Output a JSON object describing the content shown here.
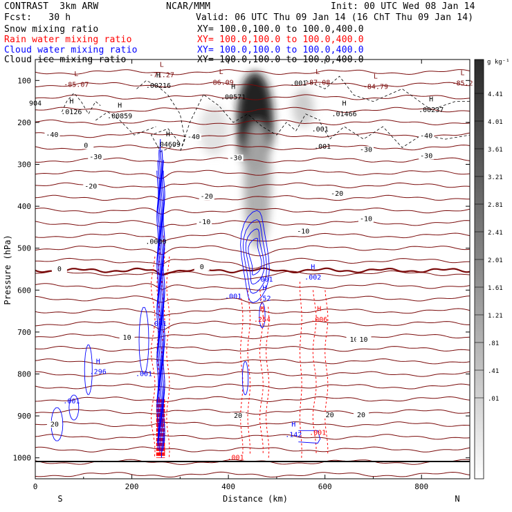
{
  "header": {
    "model": "CONTRAST  3km ARW",
    "fcst": "Fcst:   30 h",
    "center": "NCAR/MMM",
    "init": "Init: 00 UTC Wed 08 Jan 14",
    "valid": "Valid: 06 UTC Thu 09 Jan 14 (16 ChT Thu 09 Jan 14)",
    "fields": [
      {
        "name": "Snow mixing ratio",
        "xy": "XY= 100.0,100.0 to 100.0,400.0",
        "color": "#000000"
      },
      {
        "name": "Rain water mixing ratio",
        "xy": "XY= 100.0,100.0 to 100.0,400.0",
        "color": "#ff0000"
      },
      {
        "name": "Cloud water mixing ratio",
        "xy": "XY= 100.0,100.0 to 100.0,400.0",
        "color": "#0000ff"
      },
      {
        "name": "Cloud ice mixing ratio",
        "xy": "XY= 100.0,100.0 to 100.0,400.0",
        "color": "#000000"
      }
    ]
  },
  "colorbar": {
    "unit": "g kg⁻¹",
    "labels": [
      "4.41",
      "4.01",
      "3.61",
      "3.21",
      "2.81",
      "2.41",
      "2.01",
      "1.61",
      "1.21",
      ".81",
      ".41",
      ".01"
    ]
  },
  "chart_data": {
    "type": "contour-cross-section",
    "xlabel": "Distance (km)",
    "ylabel": "Pressure (hPa)",
    "xlim": [
      0,
      900
    ],
    "ylim": [
      1050,
      50
    ],
    "x_ticks": [
      "0",
      "200",
      "400",
      "600",
      "800"
    ],
    "y_ticks": [
      "100",
      "200",
      "300",
      "400",
      "500",
      "600",
      "700",
      "800",
      "900",
      "1000"
    ],
    "end_labels": {
      "left": "S",
      "right": "N"
    },
    "isotherm_labels": [
      {
        "text": "-40",
        "x": 35,
        "p": 235
      },
      {
        "text": "0",
        "x": 105,
        "p": 260
      },
      {
        "text": "-30",
        "x": 125,
        "p": 288
      },
      {
        "text": "-20",
        "x": 115,
        "p": 358
      },
      {
        "text": "-30",
        "x": 415,
        "p": 290
      },
      {
        "text": "-40",
        "x": 328,
        "p": 240
      },
      {
        "text": "-20",
        "x": 355,
        "p": 382
      },
      {
        "text": "-10",
        "x": 350,
        "p": 443
      },
      {
        "text": "-10",
        "x": 555,
        "p": 465
      },
      {
        "text": "-40",
        "x": 810,
        "p": 237
      },
      {
        "text": "-30",
        "x": 685,
        "p": 270
      },
      {
        "text": "-30",
        "x": 810,
        "p": 285
      },
      {
        "text": "-20",
        "x": 625,
        "p": 375
      },
      {
        "text": "-10",
        "x": 685,
        "p": 435
      },
      {
        "text": "0",
        "x": 50,
        "p": 555
      },
      {
        "text": "0",
        "x": 345,
        "p": 550
      },
      {
        "text": "10",
        "x": 190,
        "p": 718
      },
      {
        "text": "10",
        "x": 660,
        "p": 723
      },
      {
        "text": "10",
        "x": 680,
        "p": 723
      },
      {
        "text": "20",
        "x": 40,
        "p": 925
      },
      {
        "text": "20",
        "x": 420,
        "p": 905
      },
      {
        "text": "20",
        "x": 610,
        "p": 903
      },
      {
        "text": "20",
        "x": 675,
        "p": 903
      }
    ],
    "extrema_labels": [
      {
        "kind": "L",
        "value": "-71.27",
        "x": 262,
        "p": 92,
        "color": "#7a0a0a"
      },
      {
        "kind": "L",
        "value": "-85.07",
        "x": 85,
        "p": 115,
        "color": "#7a0a0a"
      },
      {
        "kind": "L",
        "value": "-86.09",
        "x": 385,
        "p": 110,
        "color": "#7a0a0a"
      },
      {
        "kind": "L",
        "value": "-87.08",
        "x": 585,
        "p": 110,
        "color": "#7a0a0a"
      },
      {
        "kind": "L",
        "value": "-84.79",
        "x": 705,
        "p": 120,
        "color": "#7a0a0a"
      },
      {
        "kind": "L",
        "value": "-85.2",
        "x": 885,
        "p": 112,
        "color": "#7a0a0a"
      },
      {
        "kind": "H",
        "value": ".00216",
        "x": 255,
        "p": 118,
        "color": "#000000"
      },
      {
        "kind": "H",
        "value": ".00571",
        "x": 410,
        "p": 145,
        "color": "#000000"
      },
      {
        "kind": "H",
        "value": ".0126",
        "x": 75,
        "p": 180,
        "color": "#000000"
      },
      {
        "kind": "H",
        "value": ".00859",
        "x": 175,
        "p": 190,
        "color": "#000000"
      },
      {
        "kind": "H",
        "value": ".01466",
        "x": 640,
        "p": 185,
        "color": "#000000"
      },
      {
        "kind": "H",
        "value": ".00237",
        "x": 820,
        "p": 175,
        "color": "#000000"
      },
      {
        "kind": "H",
        "value": ".04609",
        "x": 275,
        "p": 258,
        "color": "#000000"
      },
      {
        "kind": "H",
        "value": ".296",
        "x": 130,
        "p": 800,
        "color": "#0000ff"
      },
      {
        "kind": "H",
        "value": ".142",
        "x": 535,
        "p": 950,
        "color": "#0000ff"
      },
      {
        "kind": "H",
        "value": ".52",
        "x": 475,
        "p": 625,
        "color": "#0000ff"
      },
      {
        "kind": "H",
        "value": ".002",
        "x": 575,
        "p": 575,
        "color": "#0000ff"
      },
      {
        "kind": "H",
        "value": ".006",
        "x": 588,
        "p": 675,
        "color": "#ff0000"
      },
      {
        "kind": "H",
        "value": ".254",
        "x": 470,
        "p": 675,
        "color": "#ff0000"
      }
    ],
    "value_labels": [
      {
        "text": "904",
        "x": 0,
        "p": 160,
        "color": "#000000"
      },
      {
        "text": ".001",
        "x": 545,
        "p": 112,
        "color": "#000000"
      },
      {
        "text": ".001",
        "x": 590,
        "p": 222,
        "color": "#000000"
      },
      {
        "text": ".001",
        "x": 595,
        "p": 263,
        "color": "#000000"
      },
      {
        "text": ".001",
        "x": 475,
        "p": 580,
        "color": "#0000ff"
      },
      {
        "text": ".001",
        "x": 410,
        "p": 620,
        "color": "#0000ff"
      },
      {
        "text": ".001",
        "x": 255,
        "p": 685,
        "color": "#0000ff"
      },
      {
        "text": ".001",
        "x": 225,
        "p": 805,
        "color": "#0000ff"
      },
      {
        "text": ".001",
        "x": 75,
        "p": 870,
        "color": "#0000ff"
      },
      {
        "text": ".001",
        "x": 585,
        "p": 945,
        "color": "#ff0000"
      },
      {
        "text": ".001",
        "x": 415,
        "p": 1005,
        "color": "#ff0000"
      },
      {
        "text": ".0000",
        "x": 250,
        "p": 490,
        "color": "#000000"
      }
    ],
    "snow_shading": [
      {
        "x": 455,
        "p": 200,
        "sx": 38,
        "sp": 120,
        "v": 4.4
      },
      {
        "x": 460,
        "p": 350,
        "sx": 28,
        "sp": 150,
        "v": 1.6
      },
      {
        "x": 555,
        "p": 165,
        "sx": 22,
        "sp": 45,
        "v": 1.0
      },
      {
        "x": 370,
        "p": 220,
        "sx": 30,
        "sp": 60,
        "v": 0.6
      }
    ]
  }
}
